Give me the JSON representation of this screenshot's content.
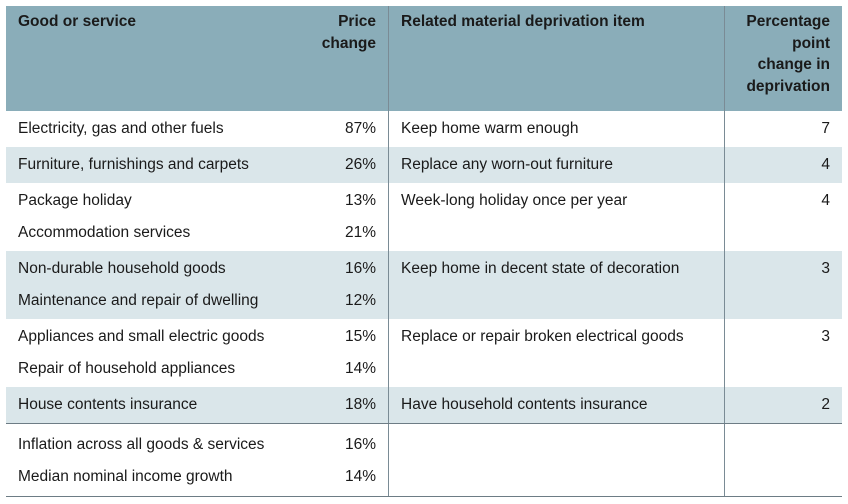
{
  "header": {
    "col1": "Good or service",
    "col2_line1": "Price",
    "col2_line2": "change",
    "col3": "Related material deprivation item",
    "col4_line1": "Percentage",
    "col4_line2": "point",
    "col4_line3": "change in",
    "col4_line4": "deprivation"
  },
  "groups": [
    {
      "goods": [
        {
          "name": "Electricity, gas and other fuels",
          "price": "87%"
        }
      ],
      "item": "Keep home warm enough",
      "change": "7",
      "shaded": false
    },
    {
      "goods": [
        {
          "name": "Furniture, furnishings and carpets",
          "price": "26%"
        }
      ],
      "item": "Replace any worn-out furniture",
      "change": "4",
      "shaded": true
    },
    {
      "goods": [
        {
          "name": "Package holiday",
          "price": "13%"
        },
        {
          "name": "Accommodation services",
          "price": "21%"
        }
      ],
      "item": "Week-long holiday once per year",
      "change": "4",
      "shaded": false
    },
    {
      "goods": [
        {
          "name": "Non-durable household goods",
          "price": "16%"
        },
        {
          "name": "Maintenance and repair of dwelling",
          "price": "12%"
        }
      ],
      "item": "Keep home in decent state of decoration",
      "change": "3",
      "shaded": true
    },
    {
      "goods": [
        {
          "name": "Appliances and small electric goods",
          "price": "15%"
        },
        {
          "name": "Repair of household appliances",
          "price": "14%"
        }
      ],
      "item": "Replace or repair broken electrical goods",
      "change": "3",
      "shaded": false
    },
    {
      "goods": [
        {
          "name": "House contents insurance",
          "price": "18%"
        }
      ],
      "item": "Have household contents insurance",
      "change": "2",
      "shaded": true
    },
    {
      "goods": [
        {
          "name": "Inflation across all goods & services",
          "price": "16%"
        },
        {
          "name": "Median nominal income growth",
          "price": "14%"
        }
      ],
      "item": "",
      "change": "",
      "shaded": false
    }
  ]
}
